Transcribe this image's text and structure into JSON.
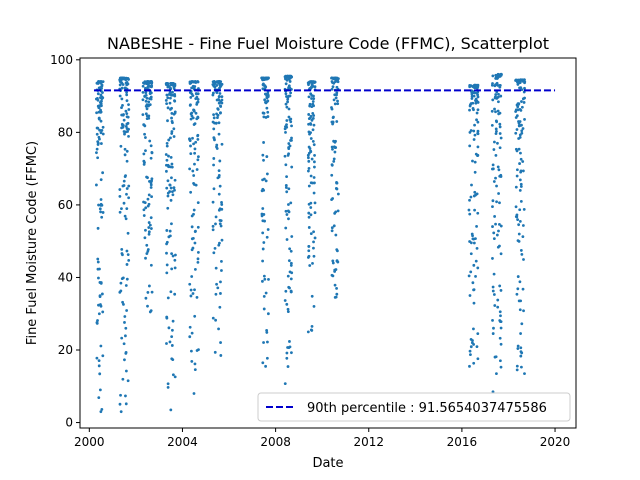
{
  "chart_data": {
    "type": "scatter",
    "title": "NABESHE - Fine Fuel Moisture Code (FFMC), Scatterplot",
    "xlabel": "Date",
    "ylabel": "Fine Fuel Moisture Code (FFMC)",
    "xlim": [
      1999.6,
      2020.9
    ],
    "ylim": [
      -1.5,
      100.5
    ],
    "x_ticks": [
      2000,
      2004,
      2008,
      2012,
      2016,
      2020
    ],
    "y_ticks": [
      0,
      20,
      40,
      60,
      80,
      100
    ],
    "reference_line": {
      "value": 91.5654037475586,
      "label": "90th percentile : 91.5654037475586",
      "color": "#0000cc",
      "style": "dashed"
    },
    "legend_position": "lower-right",
    "grid": false,
    "point_color": "#1f77b4",
    "clusters": [
      {
        "x_start": 2000.3,
        "x_end": 2000.6,
        "y_min": 3.0,
        "y_max": 94.0,
        "points": 110
      },
      {
        "x_start": 2001.3,
        "x_end": 2001.7,
        "y_min": 3.0,
        "y_max": 95.0,
        "points": 130
      },
      {
        "x_start": 2002.3,
        "x_end": 2002.7,
        "y_min": 30.5,
        "y_max": 94.0,
        "points": 120
      },
      {
        "x_start": 2003.3,
        "x_end": 2003.7,
        "y_min": 3.5,
        "y_max": 93.5,
        "points": 130
      },
      {
        "x_start": 2004.3,
        "x_end": 2004.7,
        "y_min": 8.0,
        "y_max": 94.0,
        "points": 120
      },
      {
        "x_start": 2005.3,
        "x_end": 2005.7,
        "y_min": 18.5,
        "y_max": 94.0,
        "points": 120
      },
      {
        "x_start": 2007.4,
        "x_end": 2007.7,
        "y_min": 15.5,
        "y_max": 95.0,
        "points": 90
      },
      {
        "x_start": 2008.4,
        "x_end": 2008.7,
        "y_min": 7.5,
        "y_max": 95.5,
        "points": 110
      },
      {
        "x_start": 2009.4,
        "x_end": 2009.7,
        "y_min": 25.0,
        "y_max": 94.0,
        "points": 110
      },
      {
        "x_start": 2010.4,
        "x_end": 2010.7,
        "y_min": 34.5,
        "y_max": 95.0,
        "points": 90
      },
      {
        "x_start": 2016.3,
        "x_end": 2016.7,
        "y_min": 15.5,
        "y_max": 93.0,
        "points": 120
      },
      {
        "x_start": 2017.3,
        "x_end": 2017.7,
        "y_min": 8.5,
        "y_max": 96.0,
        "points": 120
      },
      {
        "x_start": 2018.3,
        "x_end": 2018.7,
        "y_min": 13.5,
        "y_max": 94.5,
        "points": 120
      }
    ]
  }
}
